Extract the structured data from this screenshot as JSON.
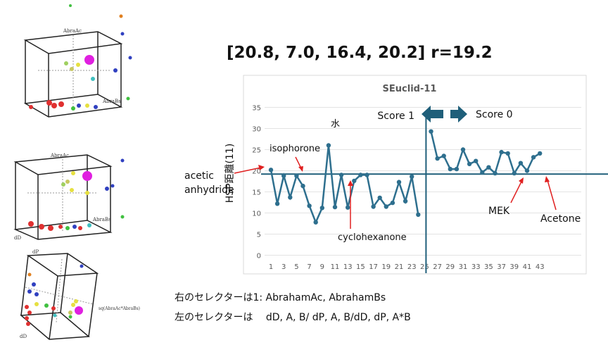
{
  "headline": "[20.8, 7.0, 16.4, 20.2] r=19.2",
  "plots3d": [
    {
      "label_top": "AbraAc",
      "label_right": "AbraBs"
    },
    {
      "label_top": "AbraAc",
      "label_right": "AbraBs",
      "label_corner": "dD"
    },
    {
      "label_top": "dP",
      "label_right": "sq(AbraAc*AbraBs)",
      "label_corner": "dD"
    }
  ],
  "captions": {
    "line1": "右のセレクターは1: AbrahamAc, AbrahamBs",
    "line2": "左のセレクターは　 dD, A, B/ dP, A, B/dD, dP, A*B"
  },
  "chart_data": {
    "type": "line",
    "title": "SEuclid-11",
    "ylabel": "HSP距離(11)",
    "xlabel": "",
    "ylim": [
      0,
      35
    ],
    "yticks": [
      0,
      5,
      10,
      15,
      20,
      25,
      30,
      35
    ],
    "xticks": [
      1,
      3,
      5,
      7,
      9,
      11,
      13,
      15,
      17,
      19,
      21,
      23,
      25,
      27,
      29,
      31,
      33,
      35,
      37,
      39,
      41,
      43
    ],
    "grid": true,
    "threshold": 19.2,
    "divider_x": 25,
    "series": [
      {
        "segment": "left",
        "x": [
          1,
          2,
          3,
          4,
          5,
          6,
          7,
          8,
          9,
          10,
          11,
          12,
          13,
          14,
          15,
          16,
          17,
          18,
          19,
          20,
          21,
          22,
          23,
          24
        ],
        "y": [
          20.2,
          12.2,
          18.8,
          13.7,
          18.8,
          16.4,
          11.7,
          7.8,
          11.2,
          26.0,
          11.4,
          19.0,
          11.3,
          17.6,
          19.0,
          19.0,
          11.5,
          13.6,
          11.5,
          12.4,
          17.3,
          12.8,
          18.6,
          9.6
        ]
      },
      {
        "segment": "right",
        "x": [
          26,
          27,
          28,
          29,
          30,
          31,
          32,
          33,
          34,
          35,
          36,
          37,
          38,
          39,
          40,
          41,
          42,
          43
        ],
        "y": [
          29.3,
          22.9,
          23.5,
          20.4,
          20.4,
          25.0,
          21.6,
          22.3,
          19.6,
          20.8,
          19.4,
          24.4,
          24.1,
          19.4,
          21.8,
          20.0,
          23.2,
          24.1
        ]
      }
    ],
    "annotations": {
      "water": "水",
      "isophorone": "isophorone",
      "acetic_line1": "acetic",
      "acetic_line2": "anhydride",
      "cyclohexanone": "cyclohexanone",
      "mek": "MEK",
      "acetone": "Acetone",
      "score1": "Score 1",
      "score0": "Score 0"
    }
  }
}
